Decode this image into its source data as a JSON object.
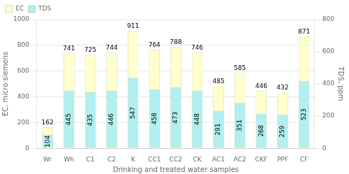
{
  "chart_data": {
    "type": "bar",
    "xlabel": "Drinking and treated water samples",
    "ylabel": "EC, micro siemens",
    "y2label": "TDS, ppm",
    "categories": [
      "Wr",
      "Wh",
      "C1",
      "C2",
      "K",
      "CC1",
      "CC2",
      "CK",
      "AC1",
      "AC2",
      "CKF",
      "PPF",
      "CF"
    ],
    "series": [
      {
        "name": "TDS",
        "color": "#b2efef",
        "data_labels": true,
        "values": [
          104,
          445,
          435,
          446,
          547,
          458,
          473,
          448,
          291,
          351,
          268,
          259,
          523
        ]
      },
      {
        "name": "EC",
        "color": "#ffffcc",
        "data_labels": false,
        "values": [
          58,
          296,
          290,
          298,
          364,
          306,
          315,
          298,
          194,
          234,
          178,
          173,
          348
        ]
      }
    ],
    "totals": [
      162,
      741,
      725,
      744,
      911,
      764,
      788,
      746,
      485,
      585,
      446,
      432,
      871
    ],
    "stacked": true,
    "ylim": [
      0,
      1000
    ],
    "yticks": [
      0,
      200,
      400,
      600,
      800,
      1000
    ],
    "y2lim": [
      0,
      800
    ],
    "y2ticks": [
      0,
      200,
      400,
      600,
      800
    ],
    "grid": true,
    "legend": "upper left"
  }
}
